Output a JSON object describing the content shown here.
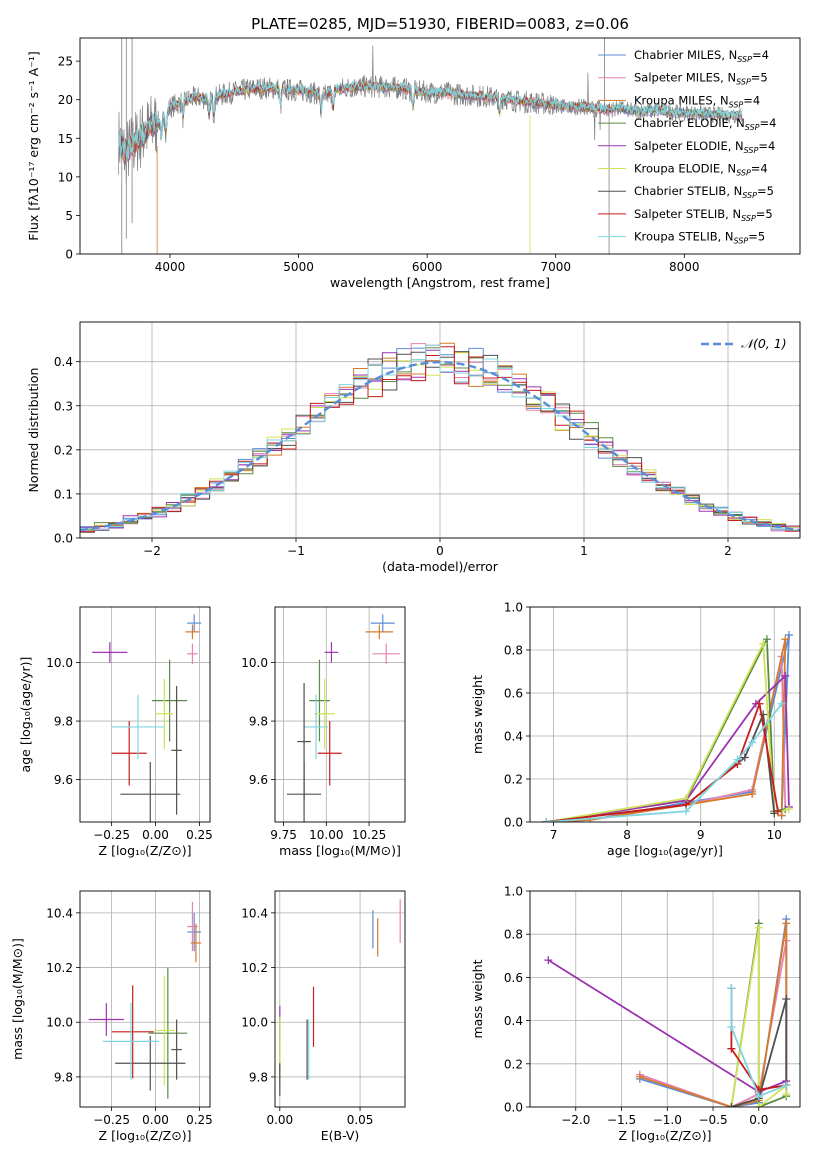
{
  "colors": {
    "series": [
      "#5b8ed6",
      "#e683b4",
      "#d87a2a",
      "#5a8a45",
      "#9b35b0",
      "#cfe35a",
      "#505050",
      "#c81d1d",
      "#80d6e0"
    ],
    "spectrum_data": "#808080",
    "gauss": "#5b8ed6"
  },
  "chart_data": [
    {
      "type": "line",
      "title": "PLATE=0285, MJD=51930, FIBERID=0083, z=0.06",
      "xlabel": "wavelength [Angstrom, rest frame]",
      "ylabel": "Flux [fλ10⁻¹⁷ erg cm⁻² s⁻¹ A⁻¹]",
      "xlim": [
        3300,
        8900
      ],
      "ylim": [
        0,
        28
      ],
      "xticks": [
        "4000",
        "5000",
        "6000",
        "7000",
        "8000"
      ],
      "yticks": [
        "0",
        "5",
        "10",
        "15",
        "20",
        "25"
      ],
      "legend_position": "top-right",
      "legend": [
        {
          "model": "Chabrier MILES, N",
          "sub": "SSP",
          "n": "=4"
        },
        {
          "model": "Salpeter MILES, N",
          "sub": "SSP",
          "n": "=5"
        },
        {
          "model": "Kroupa MILES, N",
          "sub": "SSP",
          "n": "=4"
        },
        {
          "model": "Chabrier ELODIE, N",
          "sub": "SSP",
          "n": "=4"
        },
        {
          "model": "Salpeter ELODIE, N",
          "sub": "SSP",
          "n": "=4"
        },
        {
          "model": "Kroupa ELODIE, N",
          "sub": "SSP",
          "n": "=4"
        },
        {
          "model": "Chabrier STELIB, N",
          "sub": "SSP",
          "n": "=5"
        },
        {
          "model": "Salpeter STELIB, N",
          "sub": "SSP",
          "n": "=5"
        },
        {
          "model": "Kroupa STELIB, N",
          "sub": "SSP",
          "n": "=5"
        }
      ],
      "continuum": [
        [
          3580,
          15.5
        ],
        [
          3650,
          13.0
        ],
        [
          3750,
          14.8
        ],
        [
          3850,
          16.5
        ],
        [
          3950,
          17.5
        ],
        [
          4000,
          19.0
        ],
        [
          4100,
          19.8
        ],
        [
          4200,
          20.3
        ],
        [
          4300,
          20.1
        ],
        [
          4400,
          20.6
        ],
        [
          4500,
          21.0
        ],
        [
          4600,
          21.3
        ],
        [
          4700,
          21.5
        ],
        [
          4800,
          21.5
        ],
        [
          4900,
          21.3
        ],
        [
          5000,
          21.2
        ],
        [
          5100,
          21.0
        ],
        [
          5200,
          20.5
        ],
        [
          5300,
          21.3
        ],
        [
          5400,
          21.6
        ],
        [
          5500,
          21.7
        ],
        [
          5600,
          21.7
        ],
        [
          5700,
          21.6
        ],
        [
          5800,
          21.5
        ],
        [
          5900,
          21.1
        ],
        [
          6000,
          21.0
        ],
        [
          6100,
          20.9
        ],
        [
          6200,
          20.8
        ],
        [
          6300,
          20.6
        ],
        [
          6400,
          20.5
        ],
        [
          6500,
          20.3
        ],
        [
          6600,
          20.2
        ],
        [
          6700,
          19.8
        ],
        [
          6800,
          19.7
        ],
        [
          6900,
          19.5
        ],
        [
          7000,
          19.3
        ],
        [
          7100,
          19.0
        ],
        [
          7200,
          19.1
        ],
        [
          7300,
          18.8
        ],
        [
          7400,
          18.7
        ],
        [
          7500,
          18.9
        ],
        [
          7600,
          18.5
        ],
        [
          7700,
          18.5
        ],
        [
          7800,
          18.6
        ],
        [
          7900,
          18.4
        ],
        [
          8000,
          18.3
        ],
        [
          8100,
          18.2
        ],
        [
          8200,
          18.1
        ],
        [
          8300,
          18.0
        ],
        [
          8400,
          18.0
        ]
      ]
    },
    {
      "type": "area",
      "xlabel": "(data-model)/error",
      "ylabel": "Normed distribution",
      "xlim": [
        -2.5,
        2.5
      ],
      "ylim": [
        0,
        0.49
      ],
      "xticks": [
        "−2",
        "−1",
        "0",
        "1",
        "2"
      ],
      "yticks": [
        "0.0",
        "0.1",
        "0.2",
        "0.3",
        "0.4"
      ],
      "grid": true,
      "legend_position": "top-right",
      "legend": "𝒩(0, 1)",
      "bin_width": 0.1
    },
    {
      "type": "scatter",
      "xlabel": "Z [log₁₀(Z/Z⊙)]",
      "ylabel": "age  [log₁₀(age/yr)]",
      "xlim": [
        -0.43,
        0.31
      ],
      "ylim": [
        9.455,
        10.19
      ],
      "xticks": [
        "−0.25",
        "0.00",
        "0.25"
      ],
      "yticks": [
        "9.6",
        "9.8",
        "10.0"
      ],
      "grid": true,
      "points": [
        {
          "x": 0.22,
          "y": 10.135,
          "ex": 0.04,
          "ey": 0.03
        },
        {
          "x": 0.21,
          "y": 10.03,
          "ex": 0.03,
          "ey": 0.035
        },
        {
          "x": 0.21,
          "y": 10.105,
          "ex": 0.04,
          "ey": 0.025
        },
        {
          "x": 0.08,
          "y": 9.87,
          "ex": 0.1,
          "ey": 0.14
        },
        {
          "x": -0.26,
          "y": 10.035,
          "ex": 0.1,
          "ey": 0.035
        },
        {
          "x": 0.05,
          "y": 9.825,
          "ex": 0.05,
          "ey": 0.12
        },
        {
          "x": -0.03,
          "y": 9.55,
          "ex": 0.17,
          "ey": 0.11
        },
        {
          "x": -0.15,
          "y": 9.69,
          "ex": 0.1,
          "ey": 0.11
        },
        {
          "x": -0.1,
          "y": 9.78,
          "ex": 0.15,
          "ey": 0.11
        },
        {
          "x": 0.12,
          "y": 9.7,
          "ex": 0.03,
          "ey": 0.22
        }
      ],
      "colors": [
        0,
        1,
        2,
        3,
        4,
        5,
        6,
        7,
        8,
        6
      ]
    },
    {
      "type": "scatter",
      "xlabel": "mass [log₁₀(M/M⊙)]",
      "ylabel": "",
      "xlim": [
        9.7,
        10.46
      ],
      "ylim": [
        9.455,
        10.19
      ],
      "xticks": [
        "9.75",
        "10.00",
        "10.25"
      ],
      "yticks": [
        "9.6",
        "9.8",
        "10.0"
      ],
      "grid": true,
      "points": [
        {
          "x": 10.33,
          "y": 10.135,
          "ex": 0.07,
          "ey": 0.03
        },
        {
          "x": 10.35,
          "y": 10.03,
          "ex": 0.08,
          "ey": 0.035
        },
        {
          "x": 10.31,
          "y": 10.105,
          "ex": 0.08,
          "ey": 0.025
        },
        {
          "x": 9.96,
          "y": 9.87,
          "ex": 0.06,
          "ey": 0.14
        },
        {
          "x": 10.03,
          "y": 10.035,
          "ex": 0.04,
          "ey": 0.035
        },
        {
          "x": 9.99,
          "y": 9.825,
          "ex": 0.06,
          "ey": 0.12
        },
        {
          "x": 9.87,
          "y": 9.55,
          "ex": 0.1,
          "ey": 0.11
        },
        {
          "x": 10.02,
          "y": 9.69,
          "ex": 0.07,
          "ey": 0.11
        },
        {
          "x": 9.94,
          "y": 9.78,
          "ex": 0.07,
          "ey": 0.11
        },
        {
          "x": 9.87,
          "y": 9.73,
          "ex": 0.04,
          "ey": 0.2
        }
      ],
      "colors": [
        0,
        1,
        2,
        3,
        4,
        5,
        6,
        7,
        8,
        6
      ]
    },
    {
      "type": "line",
      "xlabel": "age  [log₁₀(age/yr)]",
      "ylabel": "mass weight",
      "xlim": [
        6.68,
        10.35
      ],
      "ylim": [
        0,
        1.0
      ],
      "xticks": [
        "7",
        "8",
        "9",
        "10"
      ],
      "yticks": [
        "0.0",
        "0.2",
        "0.4",
        "0.6",
        "0.8",
        "1.0"
      ],
      "grid": true,
      "series": [
        {
          "x": [
            6.9,
            7.5,
            8.8,
            9.7,
            10.2,
            10.1
          ],
          "y": [
            0.0,
            0.01,
            0.09,
            0.14,
            0.87,
            0.03
          ]
        },
        {
          "x": [
            6.9,
            7.5,
            8.8,
            9.7,
            10.1,
            10.15
          ],
          "y": [
            0.0,
            0.01,
            0.08,
            0.15,
            0.77,
            0.06
          ]
        },
        {
          "x": [
            6.9,
            7.5,
            8.8,
            9.7,
            10.15,
            10.1
          ],
          "y": [
            0.0,
            0.01,
            0.08,
            0.13,
            0.85,
            0.03
          ]
        },
        {
          "x": [
            6.9,
            8.8,
            9.9,
            10.0,
            10.15
          ],
          "y": [
            0.0,
            0.1,
            0.85,
            0.05,
            0.06
          ]
        },
        {
          "x": [
            6.9,
            8.8,
            9.75,
            10.15,
            10.2
          ],
          "y": [
            0.0,
            0.1,
            0.55,
            0.68,
            0.07
          ]
        },
        {
          "x": [
            6.9,
            8.8,
            9.85,
            10.0,
            10.2
          ],
          "y": [
            0.0,
            0.11,
            0.83,
            0.04,
            0.06
          ]
        },
        {
          "x": [
            6.9,
            8.8,
            9.6,
            9.85,
            10.0
          ],
          "y": [
            0.0,
            0.08,
            0.3,
            0.5,
            0.04
          ]
        },
        {
          "x": [
            6.9,
            8.8,
            9.5,
            9.8,
            10.05
          ],
          "y": [
            0.0,
            0.08,
            0.27,
            0.55,
            0.05
          ]
        },
        {
          "x": [
            6.9,
            8.8,
            9.5,
            9.7,
            10.1
          ],
          "y": [
            0.0,
            0.05,
            0.29,
            0.37,
            0.55
          ]
        }
      ]
    },
    {
      "type": "scatter",
      "xlabel": "Z [log₁₀(Z/Z⊙)]",
      "ylabel": "mass [log₁₀(M/M⊙)]",
      "xlim": [
        -0.43,
        0.31
      ],
      "ylim": [
        9.69,
        10.48
      ],
      "xticks": [
        "−0.25",
        "0.00",
        "0.25"
      ],
      "yticks": [
        "9.8",
        "10.0",
        "10.2",
        "10.4"
      ],
      "grid": true,
      "points": [
        {
          "x": 0.22,
          "y": 10.33,
          "ex": 0.04,
          "ey": 0.07
        },
        {
          "x": 0.21,
          "y": 10.35,
          "ex": 0.03,
          "ey": 0.09
        },
        {
          "x": 0.23,
          "y": 10.29,
          "ex": 0.03,
          "ey": 0.07
        },
        {
          "x": 0.07,
          "y": 9.96,
          "ex": 0.11,
          "ey": 0.24
        },
        {
          "x": -0.28,
          "y": 10.01,
          "ex": 0.1,
          "ey": 0.06
        },
        {
          "x": 0.05,
          "y": 9.97,
          "ex": 0.06,
          "ey": 0.2
        },
        {
          "x": -0.03,
          "y": 9.85,
          "ex": 0.2,
          "ey": 0.1
        },
        {
          "x": -0.13,
          "y": 9.965,
          "ex": 0.12,
          "ey": 0.17
        },
        {
          "x": -0.14,
          "y": 9.93,
          "ex": 0.16,
          "ey": 0.14
        },
        {
          "x": 0.12,
          "y": 9.9,
          "ex": 0.03,
          "ey": 0.11
        }
      ],
      "colors": [
        0,
        1,
        2,
        3,
        4,
        5,
        6,
        7,
        8,
        6
      ]
    },
    {
      "type": "scatter",
      "xlabel": "E(B-V)",
      "ylabel": "",
      "xlim": [
        -0.003,
        0.078
      ],
      "ylim": [
        9.69,
        10.48
      ],
      "xticks": [
        "0.00",
        "0.05"
      ],
      "yticks": [
        "9.8",
        "10.0",
        "10.2",
        "10.4"
      ],
      "grid": true,
      "points": [
        {
          "x": 0.058,
          "y": 10.34,
          "ex": 0.0,
          "ey": 0.07
        },
        {
          "x": 0.075,
          "y": 10.37,
          "ex": 0.0,
          "ey": 0.08
        },
        {
          "x": 0.061,
          "y": 10.31,
          "ex": 0.0,
          "ey": 0.07
        },
        {
          "x": 0.0,
          "y": 9.9,
          "ex": 0.0,
          "ey": 0.12
        },
        {
          "x": 0.0,
          "y": 10.0,
          "ex": 0.0,
          "ey": 0.06
        },
        {
          "x": 0.0,
          "y": 9.9,
          "ex": 0.0,
          "ey": 0.12
        },
        {
          "x": 0.017,
          "y": 9.9,
          "ex": 0.0,
          "ey": 0.11
        },
        {
          "x": 0.021,
          "y": 10.02,
          "ex": 0.0,
          "ey": 0.11
        },
        {
          "x": 0.018,
          "y": 9.9,
          "ex": 0.0,
          "ey": 0.11
        },
        {
          "x": 0.0,
          "y": 9.79,
          "ex": 0.0,
          "ey": 0.06
        }
      ],
      "colors": [
        0,
        1,
        2,
        3,
        4,
        5,
        6,
        7,
        8,
        6
      ]
    },
    {
      "type": "line",
      "xlabel": "Z [log₁₀(Z/Z⊙)]",
      "ylabel": "mass weight",
      "xlim": [
        -2.5,
        0.45
      ],
      "ylim": [
        0,
        1.0
      ],
      "xticks": [
        "−2.0",
        "−1.5",
        "−1.0",
        "−0.5",
        "0.0"
      ],
      "yticks": [
        "0.0",
        "0.2",
        "0.4",
        "0.6",
        "0.8",
        "1.0"
      ],
      "grid": true,
      "series": [
        {
          "x": [
            -1.3,
            -0.3,
            0.0,
            0.3,
            0.3
          ],
          "y": [
            0.13,
            0.0,
            0.02,
            0.87,
            0.1
          ]
        },
        {
          "x": [
            -1.3,
            -0.3,
            0.0,
            0.3,
            0.3
          ],
          "y": [
            0.15,
            0.0,
            0.06,
            0.77,
            0.1
          ]
        },
        {
          "x": [
            -1.3,
            -0.3,
            0.0,
            0.3,
            0.3
          ],
          "y": [
            0.14,
            0.0,
            0.03,
            0.85,
            0.1
          ]
        },
        {
          "x": [
            -0.3,
            0.0,
            0.0,
            0.3,
            0.3
          ],
          "y": [
            0.0,
            0.85,
            0.0,
            0.05,
            0.1
          ]
        },
        {
          "x": [
            -2.3,
            0.0,
            0.3,
            0.3
          ],
          "y": [
            0.68,
            0.07,
            0.12,
            0.1
          ]
        },
        {
          "x": [
            -0.3,
            0.0,
            0.0,
            0.3,
            0.3
          ],
          "y": [
            0.0,
            0.83,
            0.0,
            0.1,
            0.06
          ]
        },
        {
          "x": [
            -0.3,
            0.0,
            0.3,
            0.3
          ],
          "y": [
            0.0,
            0.04,
            0.5,
            0.1
          ]
        },
        {
          "x": [
            -0.3,
            -0.3,
            0.0,
            0.3
          ],
          "y": [
            0.55,
            0.27,
            0.08,
            0.1
          ]
        },
        {
          "x": [
            -0.3,
            -0.3,
            0.0,
            0.3
          ],
          "y": [
            0.55,
            0.37,
            0.05,
            0.1
          ]
        }
      ]
    }
  ]
}
